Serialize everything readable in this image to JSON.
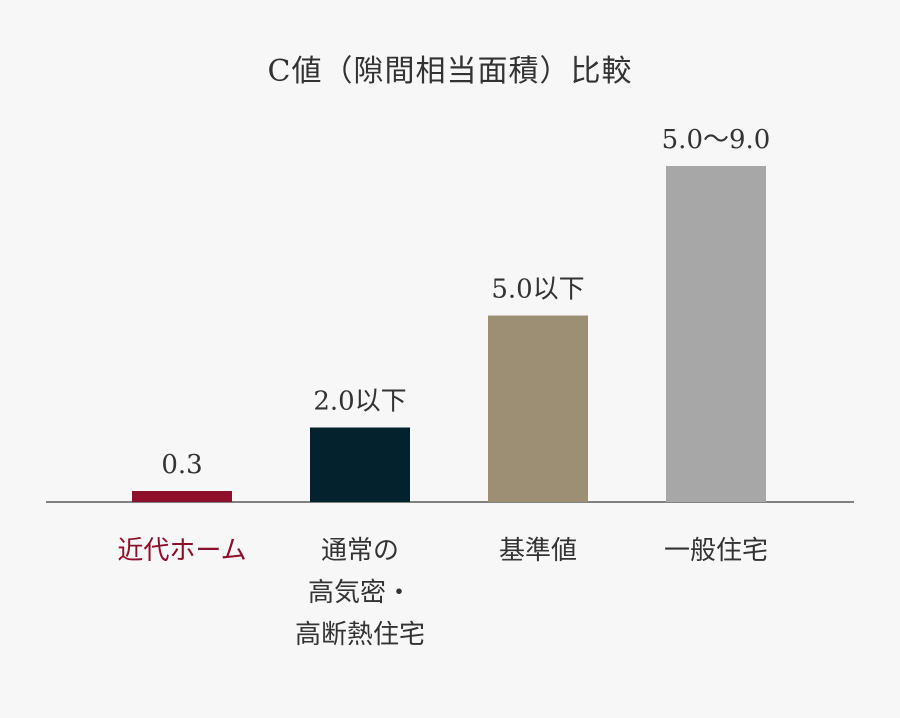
{
  "chart_data": {
    "type": "bar",
    "title": "C値（隙間相当面積）比較",
    "categories": [
      "近代ホーム",
      "通常の\n高気密・\n高断熱住宅",
      "基準値",
      "一般住宅"
    ],
    "values": [
      0.3,
      2.0,
      5.0,
      9.0
    ],
    "value_labels": [
      "0.3",
      "2.0以下",
      "5.0以下",
      "5.0〜9.0"
    ],
    "colors": [
      "#8e0f2a",
      "#03222e",
      "#9d8f74",
      "#a7a7a7"
    ],
    "label_colors": [
      "#8e0f2a",
      "#333333",
      "#333333",
      "#333333"
    ],
    "ylim": [
      0,
      9.0
    ],
    "xlabel": "",
    "ylabel": "",
    "grid": false,
    "baseline_color": "#5a5a5a"
  }
}
